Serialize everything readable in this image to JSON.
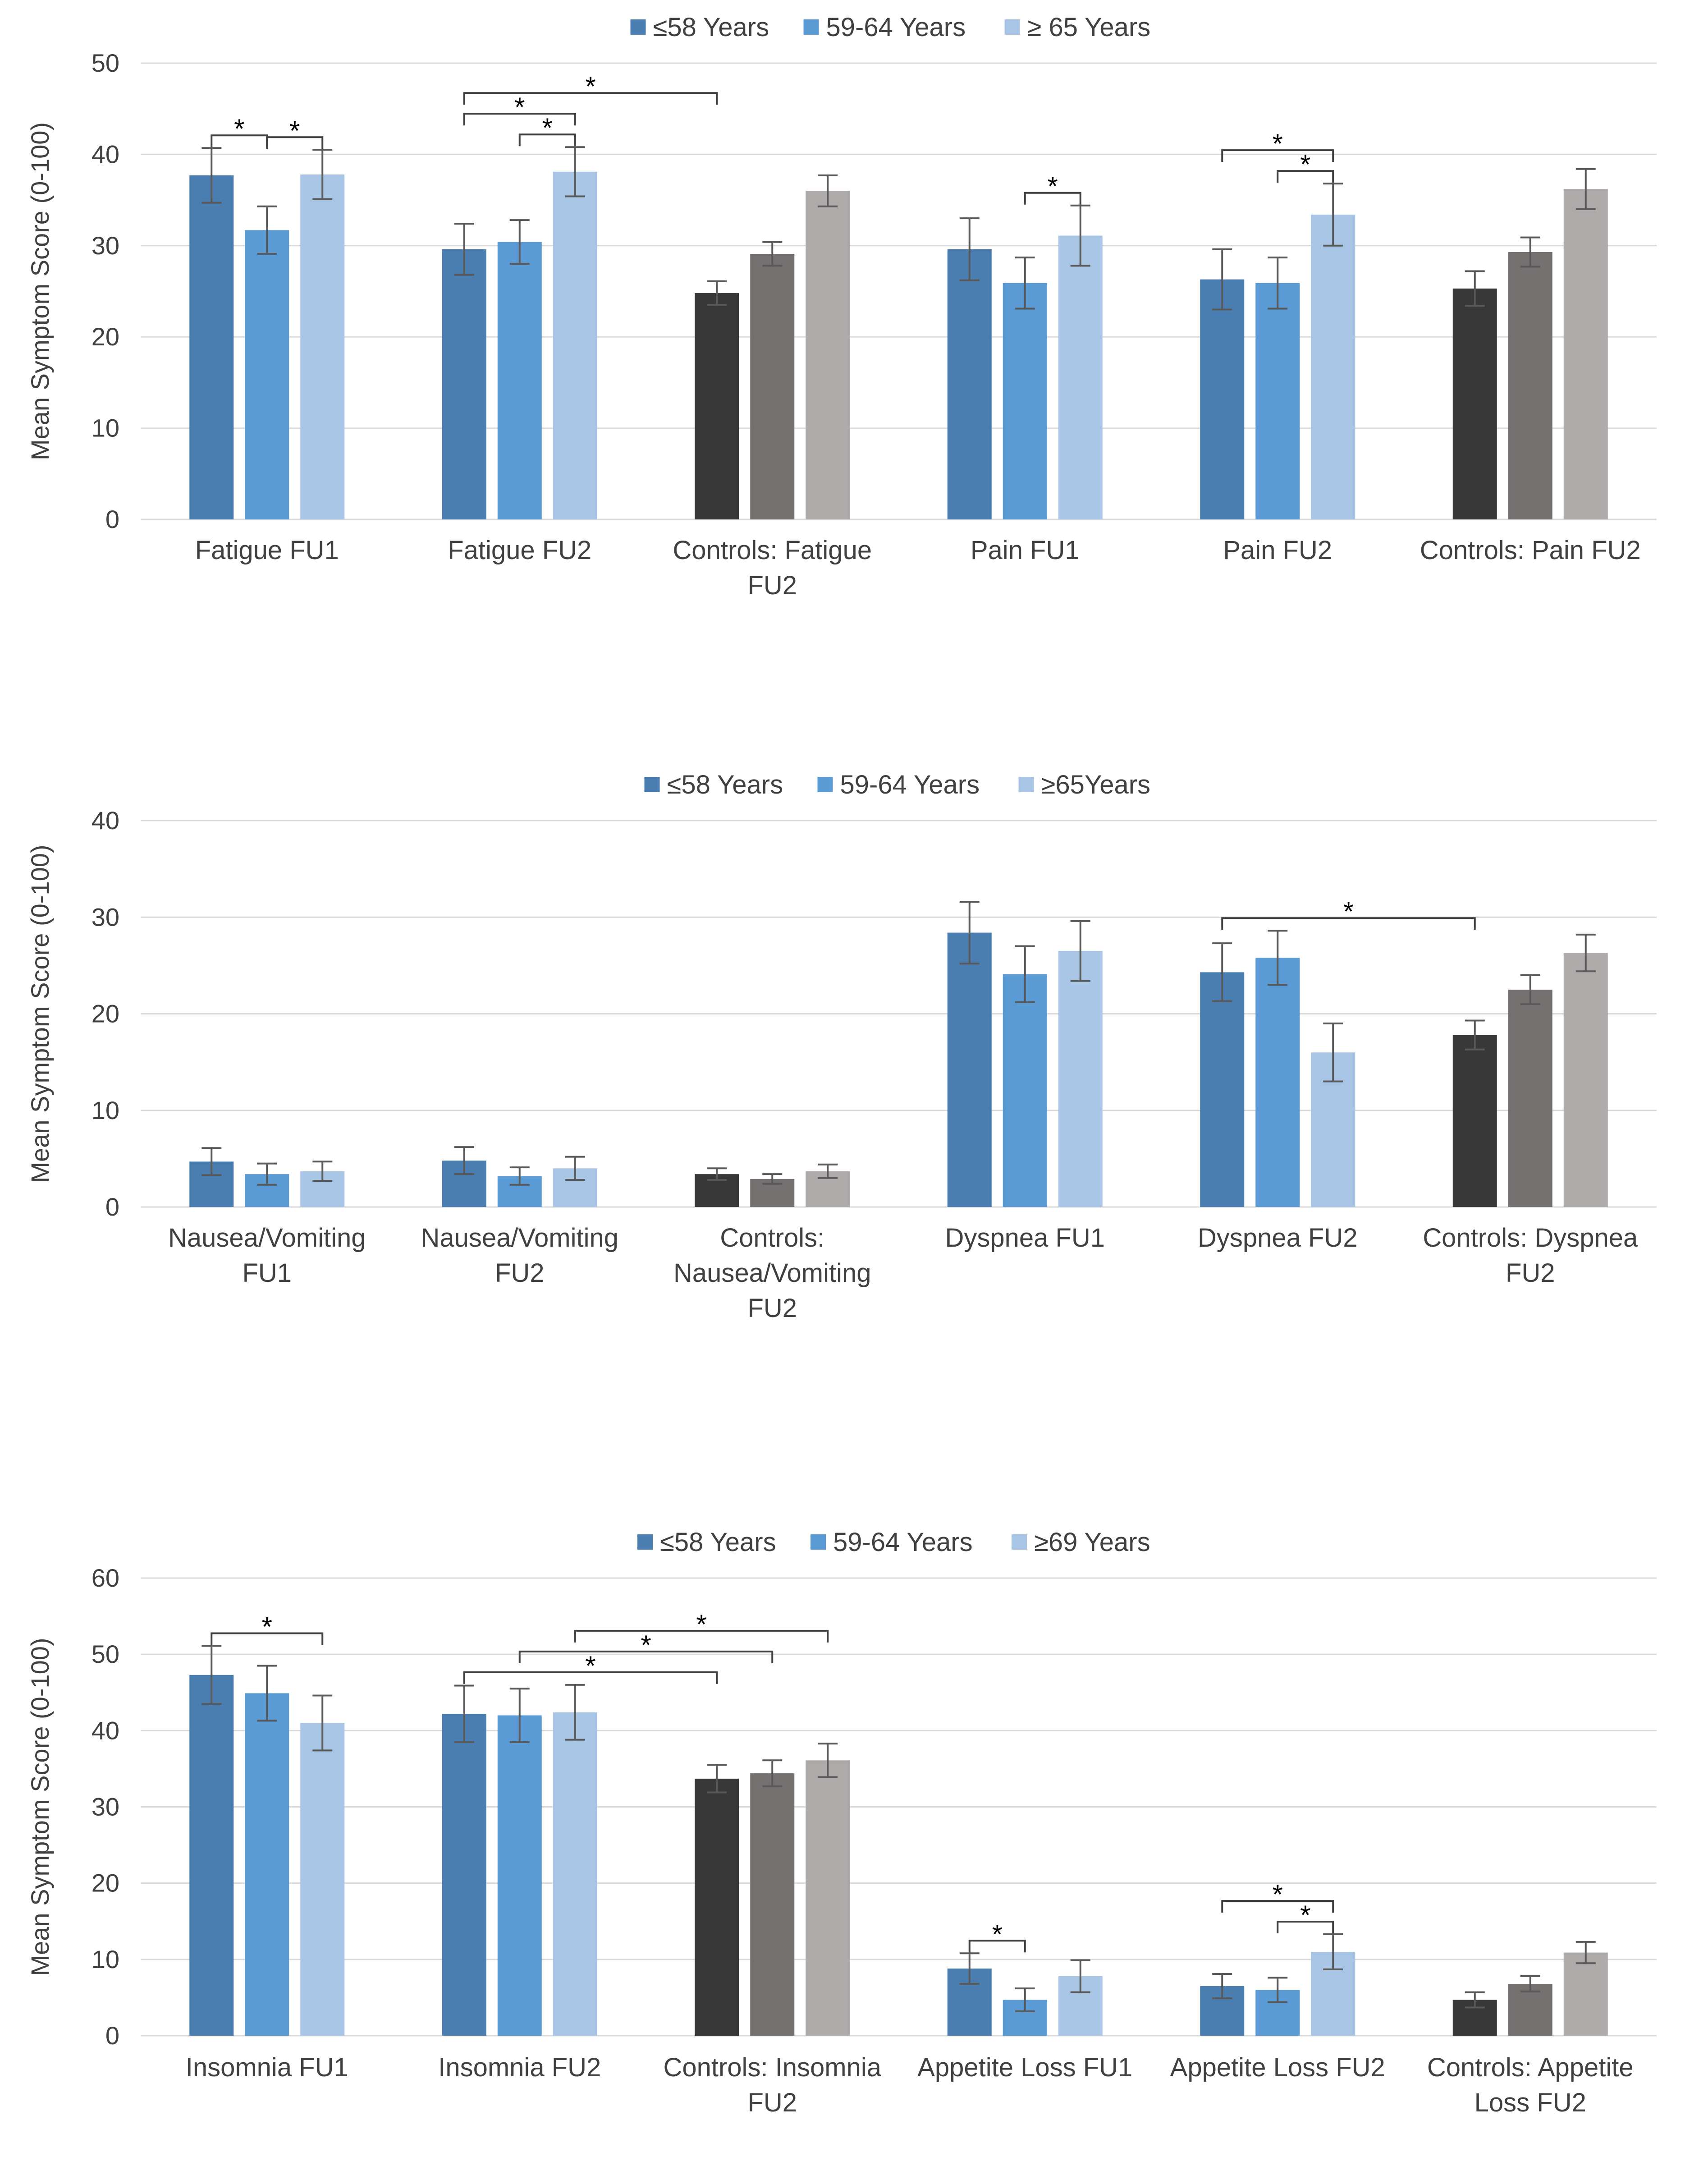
{
  "colors": {
    "patient_series": [
      "#4a7eb0",
      "#5b9bd5",
      "#a9c5e6"
    ],
    "control_series": [
      "#383838",
      "#757171",
      "#aeaaaa"
    ],
    "gridline": "#d9d9d9",
    "error_bar": "#595959",
    "bracket": "#404040"
  },
  "chart_data": [
    {
      "type": "bar",
      "title": "",
      "xlabel": "",
      "ylabel": "Mean Symptom Score (0-100)",
      "ylim": [
        0,
        50
      ],
      "yticks": [
        "0",
        "10",
        "20",
        "30",
        "40",
        "50"
      ],
      "legend": [
        "≤58 Years",
        "59-64 Years",
        "≥ 65 Years"
      ],
      "legend_position": "top-center",
      "categories": [
        {
          "label": [
            "Fatigue  FU1"
          ],
          "control": false
        },
        {
          "label": [
            "Fatigue FU2"
          ],
          "control": false
        },
        {
          "label": [
            "Controls: Fatigue",
            "FU2"
          ],
          "control": true
        },
        {
          "label": [
            "Pain FU1"
          ],
          "control": false
        },
        {
          "label": [
            "Pain FU2"
          ],
          "control": false
        },
        {
          "label": [
            "Controls: Pain FU2"
          ],
          "control": true
        }
      ],
      "series": [
        {
          "name": "≤58 Years",
          "values": [
            37.7,
            29.6,
            24.8,
            29.6,
            26.3,
            25.3
          ],
          "err": [
            3.0,
            2.8,
            1.3,
            3.4,
            3.3,
            1.9
          ]
        },
        {
          "name": "59-64 Years",
          "values": [
            31.7,
            30.4,
            29.1,
            25.9,
            25.9,
            29.3
          ],
          "err": [
            2.6,
            2.4,
            1.3,
            2.8,
            2.8,
            1.6
          ]
        },
        {
          "name": "≥ 65 Years",
          "values": [
            37.8,
            38.1,
            36.0,
            31.1,
            33.4,
            36.2
          ],
          "err": [
            2.7,
            2.7,
            1.7,
            3.3,
            3.4,
            2.2
          ]
        }
      ],
      "significance": [
        {
          "cat_from": 0,
          "series_from": 0,
          "cat_to": 0,
          "series_to": 1,
          "level": 1,
          "label": "*"
        },
        {
          "cat_from": 0,
          "series_from": 1,
          "cat_to": 0,
          "series_to": 2,
          "level": 1,
          "label": "*"
        },
        {
          "cat_from": 1,
          "series_from": 1,
          "cat_to": 1,
          "series_to": 2,
          "level": 1,
          "label": "*"
        },
        {
          "cat_from": 1,
          "series_from": 0,
          "cat_to": 1,
          "series_to": 2,
          "level": 2,
          "label": "*"
        },
        {
          "cat_from": 1,
          "series_from": 0,
          "cat_to": 2,
          "series_to": 0,
          "level": 3,
          "label": "*"
        },
        {
          "cat_from": 3,
          "series_from": 1,
          "cat_to": 3,
          "series_to": 2,
          "level": 1,
          "label": "*"
        },
        {
          "cat_from": 4,
          "series_from": 1,
          "cat_to": 4,
          "series_to": 2,
          "level": 1,
          "label": "*"
        },
        {
          "cat_from": 4,
          "series_from": 0,
          "cat_to": 4,
          "series_to": 2,
          "level": 2,
          "label": "*"
        }
      ]
    },
    {
      "type": "bar",
      "title": "",
      "xlabel": "",
      "ylabel": "Mean Symptom Score (0-100)",
      "ylim": [
        0,
        40
      ],
      "yticks": [
        "0",
        "10",
        "20",
        "30",
        "40"
      ],
      "legend": [
        "≤58 Years",
        "59-64 Years",
        "≥65Years"
      ],
      "legend_position": "top-center",
      "categories": [
        {
          "label": [
            "Nausea/Vomiting",
            "FU1"
          ],
          "control": false
        },
        {
          "label": [
            "Nausea/Vomiting",
            "FU2"
          ],
          "control": false
        },
        {
          "label": [
            "Controls:",
            "Nausea/Vomiting",
            "FU2"
          ],
          "control": true
        },
        {
          "label": [
            "Dyspnea FU1"
          ],
          "control": false
        },
        {
          "label": [
            "Dyspnea  FU2"
          ],
          "control": false
        },
        {
          "label": [
            "Controls: Dyspnea",
            "FU2"
          ],
          "control": true
        }
      ],
      "series": [
        {
          "name": "≤58 Years",
          "values": [
            4.7,
            4.8,
            3.4,
            28.4,
            24.3,
            17.8
          ],
          "err": [
            1.4,
            1.4,
            0.6,
            3.2,
            3.0,
            1.5
          ]
        },
        {
          "name": "59-64 Years",
          "values": [
            3.4,
            3.2,
            2.9,
            24.1,
            25.8,
            22.5
          ],
          "err": [
            1.1,
            0.9,
            0.5,
            2.9,
            2.8,
            1.5
          ]
        },
        {
          "name": "≥65Years",
          "values": [
            3.7,
            4.0,
            3.7,
            26.5,
            16.0,
            26.3
          ],
          "err": [
            1.0,
            1.2,
            0.7,
            3.1,
            3.0,
            1.9
          ]
        }
      ],
      "significance": [
        {
          "cat_from": 4,
          "series_from": 0,
          "cat_to": 5,
          "series_to": 0,
          "level": 1,
          "label": "*"
        }
      ]
    },
    {
      "type": "bar",
      "title": "",
      "xlabel": "",
      "ylabel": "Mean Symptom Score (0-100)",
      "ylim": [
        0,
        60
      ],
      "yticks": [
        "0",
        "10",
        "20",
        "30",
        "40",
        "50",
        "60"
      ],
      "legend": [
        "≤58 Years",
        "59-64 Years",
        "≥69 Years"
      ],
      "legend_position": "top-center",
      "categories": [
        {
          "label": [
            "Insomnia FU1"
          ],
          "control": false
        },
        {
          "label": [
            "Insomnia FU2"
          ],
          "control": false
        },
        {
          "label": [
            "Controls: Insomnia",
            "FU2"
          ],
          "control": true
        },
        {
          "label": [
            "Appetite Loss FU1"
          ],
          "control": false
        },
        {
          "label": [
            "Appetite Loss FU2"
          ],
          "control": false
        },
        {
          "label": [
            "Controls: Appetite",
            "Loss FU2"
          ],
          "control": true
        }
      ],
      "series": [
        {
          "name": "≤58 Years",
          "values": [
            47.3,
            42.2,
            33.7,
            8.8,
            6.5,
            4.7
          ],
          "err": [
            3.8,
            3.7,
            1.8,
            2.0,
            1.6,
            1.0
          ]
        },
        {
          "name": "59-64 Years",
          "values": [
            44.9,
            42.0,
            34.4,
            4.7,
            6.0,
            6.8
          ],
          "err": [
            3.6,
            3.5,
            1.7,
            1.5,
            1.6,
            1.0
          ]
        },
        {
          "name": "≥69 Years",
          "values": [
            41.0,
            42.4,
            36.1,
            7.8,
            11.0,
            10.9
          ],
          "err": [
            3.6,
            3.6,
            2.2,
            2.1,
            2.3,
            1.4
          ]
        }
      ],
      "significance": [
        {
          "cat_from": 0,
          "series_from": 0,
          "cat_to": 0,
          "series_to": 2,
          "level": 1,
          "label": "*"
        },
        {
          "cat_from": 1,
          "series_from": 0,
          "cat_to": 2,
          "series_to": 0,
          "level": 1,
          "label": "*"
        },
        {
          "cat_from": 1,
          "series_from": 1,
          "cat_to": 2,
          "series_to": 1,
          "level": 2,
          "label": "*"
        },
        {
          "cat_from": 1,
          "series_from": 2,
          "cat_to": 2,
          "series_to": 2,
          "level": 3,
          "label": "*"
        },
        {
          "cat_from": 3,
          "series_from": 0,
          "cat_to": 3,
          "series_to": 1,
          "level": 1,
          "label": "*"
        },
        {
          "cat_from": 4,
          "series_from": 1,
          "cat_to": 4,
          "series_to": 2,
          "level": 1,
          "label": "*"
        },
        {
          "cat_from": 4,
          "series_from": 0,
          "cat_to": 4,
          "series_to": 2,
          "level": 2,
          "label": "*"
        }
      ]
    }
  ]
}
